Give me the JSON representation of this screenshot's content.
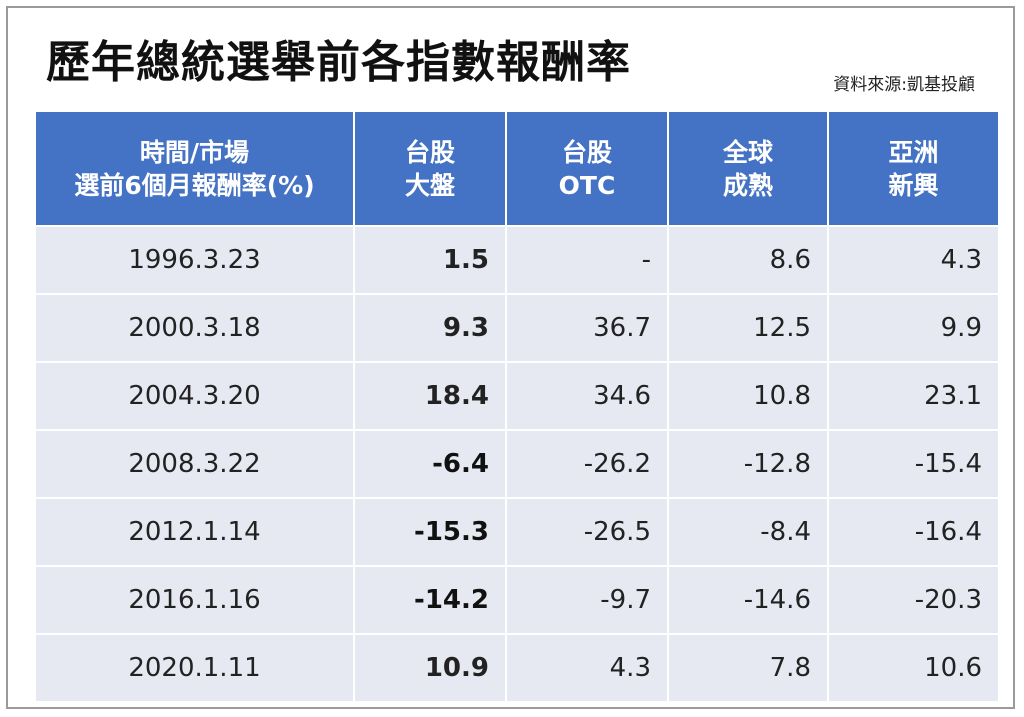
{
  "title": "歷年總統選舉前各指數報酬率",
  "source": "資料來源:凱基投顧",
  "chart_data": {
    "type": "table",
    "columns": [
      {
        "lines": [
          "時間/市場",
          "選前6個月報酬率(%)"
        ]
      },
      {
        "lines": [
          "台股",
          "大盤"
        ]
      },
      {
        "lines": [
          "台股",
          "OTC"
        ]
      },
      {
        "lines": [
          "全球",
          "成熟"
        ]
      },
      {
        "lines": [
          "亞洲",
          "新興"
        ]
      }
    ],
    "rows": [
      {
        "date": "1996.3.23",
        "values": [
          "1.5",
          "-",
          "8.6",
          "4.3"
        ]
      },
      {
        "date": "2000.3.18",
        "values": [
          "9.3",
          "36.7",
          "12.5",
          "9.9"
        ]
      },
      {
        "date": "2004.3.20",
        "values": [
          "18.4",
          "34.6",
          "10.8",
          "23.1"
        ]
      },
      {
        "date": "2008.3.22",
        "values": [
          "-6.4",
          "-26.2",
          "-12.8",
          "-15.4"
        ]
      },
      {
        "date": "2012.1.14",
        "values": [
          "-15.3",
          "-26.5",
          "-8.4",
          "-16.4"
        ]
      },
      {
        "date": "2016.1.16",
        "values": [
          "-14.2",
          "-9.7",
          "-14.6",
          "-20.3"
        ]
      },
      {
        "date": "2020.1.11",
        "values": [
          "10.9",
          "4.3",
          "7.8",
          "10.6"
        ]
      }
    ],
    "colors": {
      "header": "#4472c4",
      "cell": "#e6e9f2",
      "positive": "#c0282d",
      "negative": "#222222"
    }
  }
}
